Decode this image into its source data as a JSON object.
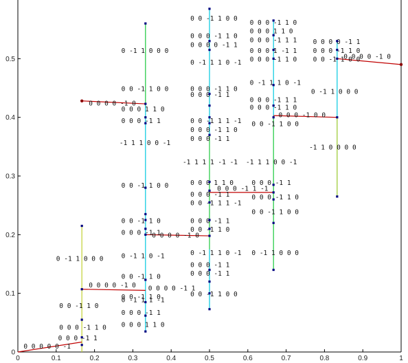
{
  "chart_data": {
    "type": "scatter",
    "title": "",
    "xlabel": "",
    "ylabel": "",
    "xlim": [
      0,
      1
    ],
    "ylim": [
      0,
      0.6
    ],
    "grid": false,
    "x_ticks": [
      "0",
      "0.1",
      "0.2",
      "0.3",
      "0.4",
      "0.5",
      "0.6",
      "0.7",
      "0.8",
      "0.9",
      "1"
    ],
    "y_ticks": [
      "0",
      "0.1",
      "0.2",
      "0.3",
      "0.4",
      "0.5"
    ],
    "colors": {
      "horizontal_segment": "#c00000",
      "vertical_cyan": "#00c8e0",
      "vertical_green": "#40d040",
      "vertical_yellowgreen": "#c0d030",
      "marker": "#000080",
      "end_marker": "#8b0000"
    },
    "horizontal_segments": [
      {
        "x": [
          0.0,
          0.167
        ],
        "y": [
          0.0,
          0.017
        ]
      },
      {
        "x": [
          0.167,
          0.333
        ],
        "y": [
          0.107,
          0.105
        ]
      },
      {
        "x": [
          0.167,
          0.333
        ],
        "y": [
          0.428,
          0.423
        ]
      },
      {
        "x": [
          0.333,
          0.5
        ],
        "y": [
          0.2,
          0.198
        ]
      },
      {
        "x": [
          0.5,
          0.667
        ],
        "y": [
          0.272,
          0.272
        ]
      },
      {
        "x": [
          0.667,
          0.833
        ],
        "y": [
          0.403,
          0.4
        ]
      },
      {
        "x": [
          0.833,
          1.0
        ],
        "y": [
          0.5,
          0.49
        ]
      }
    ],
    "vertical_segments": [
      {
        "x": 0.167,
        "y": [
          0.0,
          0.215
        ],
        "color": "#c0d030"
      },
      {
        "x": 0.333,
        "y": [
          0.035,
          0.56
        ],
        "color": "#00c8e0"
      },
      {
        "x": 0.333,
        "y": [
          0.42,
          0.56
        ],
        "color": "#40d040"
      },
      {
        "x": 0.5,
        "y": [
          0.073,
          0.585
        ],
        "color": "#00c8e0"
      },
      {
        "x": 0.5,
        "y": [
          0.175,
          0.37
        ],
        "color": "#40d040"
      },
      {
        "x": 0.667,
        "y": [
          0.14,
          0.565
        ],
        "color": "#00c8e0"
      },
      {
        "x": 0.667,
        "y": [
          0.14,
          0.4
        ],
        "color": "#40d040"
      },
      {
        "x": 0.833,
        "y": [
          0.265,
          0.53
        ],
        "color": "#00c8e0"
      },
      {
        "x": 0.833,
        "y": [
          0.265,
          0.4
        ],
        "color": "#c0d030"
      }
    ],
    "marker_points": [
      {
        "x": 0.167,
        "y": 0.012
      },
      {
        "x": 0.167,
        "y": 0.025
      },
      {
        "x": 0.167,
        "y": 0.055
      },
      {
        "x": 0.167,
        "y": 0.107
      },
      {
        "x": 0.167,
        "y": 0.215
      },
      {
        "x": 0.333,
        "y": 0.035
      },
      {
        "x": 0.333,
        "y": 0.062
      },
      {
        "x": 0.333,
        "y": 0.085
      },
      {
        "x": 0.333,
        "y": 0.123
      },
      {
        "x": 0.333,
        "y": 0.2
      },
      {
        "x": 0.333,
        "y": 0.21
      },
      {
        "x": 0.333,
        "y": 0.225
      },
      {
        "x": 0.333,
        "y": 0.235
      },
      {
        "x": 0.333,
        "y": 0.28
      },
      {
        "x": 0.333,
        "y": 0.39
      },
      {
        "x": 0.333,
        "y": 0.4
      },
      {
        "x": 0.333,
        "y": 0.423
      },
      {
        "x": 0.333,
        "y": 0.56
      },
      {
        "x": 0.5,
        "y": 0.073
      },
      {
        "x": 0.5,
        "y": 0.1
      },
      {
        "x": 0.5,
        "y": 0.12
      },
      {
        "x": 0.5,
        "y": 0.14
      },
      {
        "x": 0.5,
        "y": 0.198
      },
      {
        "x": 0.5,
        "y": 0.21
      },
      {
        "x": 0.5,
        "y": 0.225
      },
      {
        "x": 0.5,
        "y": 0.255
      },
      {
        "x": 0.5,
        "y": 0.275
      },
      {
        "x": 0.5,
        "y": 0.29
      },
      {
        "x": 0.5,
        "y": 0.37
      },
      {
        "x": 0.5,
        "y": 0.39
      },
      {
        "x": 0.5,
        "y": 0.4
      },
      {
        "x": 0.5,
        "y": 0.42
      },
      {
        "x": 0.5,
        "y": 0.44
      },
      {
        "x": 0.5,
        "y": 0.515
      },
      {
        "x": 0.5,
        "y": 0.53
      },
      {
        "x": 0.5,
        "y": 0.585
      },
      {
        "x": 0.667,
        "y": 0.14
      },
      {
        "x": 0.667,
        "y": 0.22
      },
      {
        "x": 0.667,
        "y": 0.26
      },
      {
        "x": 0.667,
        "y": 0.272
      },
      {
        "x": 0.667,
        "y": 0.285
      },
      {
        "x": 0.667,
        "y": 0.4
      },
      {
        "x": 0.667,
        "y": 0.42
      },
      {
        "x": 0.667,
        "y": 0.455
      },
      {
        "x": 0.667,
        "y": 0.5
      },
      {
        "x": 0.667,
        "y": 0.515
      },
      {
        "x": 0.667,
        "y": 0.54
      },
      {
        "x": 0.667,
        "y": 0.565
      },
      {
        "x": 0.833,
        "y": 0.265
      },
      {
        "x": 0.833,
        "y": 0.4
      },
      {
        "x": 0.833,
        "y": 0.5
      },
      {
        "x": 0.833,
        "y": 0.515
      },
      {
        "x": 0.833,
        "y": 0.53
      }
    ],
    "end_points": [
      {
        "x": 0.167,
        "y": 0.428
      },
      {
        "x": 1.0,
        "y": 0.49
      }
    ],
    "annotations": [
      {
        "text": "0 0 0 0 0 -1",
        "x": 0.015,
        "y": 0.006
      },
      {
        "text": "0 0 0 -1 1",
        "x": 0.105,
        "y": 0.02
      },
      {
        "text": "0 0 0 -1 1 0",
        "x": 0.108,
        "y": 0.038
      },
      {
        "text": "0 0 -1 1 0",
        "x": 0.108,
        "y": 0.075
      },
      {
        "text": "0 -1 1 0 0 0",
        "x": 0.1,
        "y": 0.155
      },
      {
        "text": "0 0 0 0 -1 0",
        "x": 0.185,
        "y": 0.11
      },
      {
        "text": "0 0 0 0 -1 1",
        "x": 0.34,
        "y": 0.105
      },
      {
        "text": "0 0 -1 1 0",
        "x": 0.27,
        "y": 0.125
      },
      {
        "text": "0 0 -1 1 0",
        "x": 0.27,
        "y": 0.09
      },
      {
        "text": "0 -1 1 1 -1",
        "x": 0.27,
        "y": 0.085
      },
      {
        "text": "0 0 0 -1 1",
        "x": 0.27,
        "y": 0.063
      },
      {
        "text": "0 0 0 1 1 0",
        "x": 0.27,
        "y": 0.043
      },
      {
        "text": "0 -1 1 0 -1",
        "x": 0.27,
        "y": 0.16
      },
      {
        "text": "0 0 0 -1 1",
        "x": 0.27,
        "y": 0.2
      },
      {
        "text": "0 0 -1 1 0",
        "x": 0.27,
        "y": 0.22
      },
      {
        "text": "0 0 0 0 -1 0",
        "x": 0.35,
        "y": 0.195
      },
      {
        "text": "0 0 -1 1 0 0",
        "x": 0.27,
        "y": 0.28
      },
      {
        "text": "-1 1 1 0 0 -1",
        "x": 0.265,
        "y": 0.353
      },
      {
        "text": "0 0 0 -1 1",
        "x": 0.27,
        "y": 0.39
      },
      {
        "text": "0 0 0 1 1 0",
        "x": 0.27,
        "y": 0.41
      },
      {
        "text": "0 0 -1 1 0 0",
        "x": 0.27,
        "y": 0.445
      },
      {
        "text": "0 0 0 0 -1 0",
        "x": 0.185,
        "y": 0.42
      },
      {
        "text": "0 -1 1 0 0 0",
        "x": 0.27,
        "y": 0.51
      },
      {
        "text": "0 0 -1 1 0 0",
        "x": 0.45,
        "y": 0.095
      },
      {
        "text": "0 0 0 -1 1",
        "x": 0.45,
        "y": 0.13
      },
      {
        "text": "0 0 0 -1 1",
        "x": 0.45,
        "y": 0.145
      },
      {
        "text": "0 -1 1 1 0 -1",
        "x": 0.45,
        "y": 0.165
      },
      {
        "text": "0 0 -1 1 0",
        "x": 0.45,
        "y": 0.205
      },
      {
        "text": "0 0 0 -1 1",
        "x": 0.45,
        "y": 0.22
      },
      {
        "text": "0 0 -1 1 1 -1",
        "x": 0.45,
        "y": 0.25
      },
      {
        "text": "0 0 0 -1 1",
        "x": 0.45,
        "y": 0.265
      },
      {
        "text": "0 0 0 1 1 0",
        "x": 0.45,
        "y": 0.285
      },
      {
        "text": "0 0 0 -1 1 -1",
        "x": 0.52,
        "y": 0.275
      },
      {
        "text": "-1 1 1 1 -1 -1",
        "x": 0.43,
        "y": 0.32
      },
      {
        "text": "0 0 0 -1 1 0",
        "x": 0.45,
        "y": 0.375
      },
      {
        "text": "0 0 -1 1 1 -1",
        "x": 0.45,
        "y": 0.39
      },
      {
        "text": "0 0 0 -1 1",
        "x": 0.45,
        "y": 0.36
      },
      {
        "text": "0 0 0 -1 1",
        "x": 0.45,
        "y": 0.435
      },
      {
        "text": "0 0 0 -1 1 0",
        "x": 0.45,
        "y": 0.445
      },
      {
        "text": "0 -1 1 1 0 -1",
        "x": 0.45,
        "y": 0.49
      },
      {
        "text": "0 0 0 0 -1 1",
        "x": 0.45,
        "y": 0.52
      },
      {
        "text": "0 0 0 -1 1 0",
        "x": 0.45,
        "y": 0.535
      },
      {
        "text": "0 0 -1 1 0 0",
        "x": 0.45,
        "y": 0.565
      },
      {
        "text": "0 -1 1 0 0 0",
        "x": 0.61,
        "y": 0.165
      },
      {
        "text": "0 0 -1 1 0 0",
        "x": 0.61,
        "y": 0.235
      },
      {
        "text": "0 0 0 -1 1 0",
        "x": 0.61,
        "y": 0.26
      },
      {
        "text": "0 0 0 -1 1",
        "x": 0.61,
        "y": 0.285
      },
      {
        "text": "-1 1 1 0 0 -1",
        "x": 0.595,
        "y": 0.32
      },
      {
        "text": "0 0 -1 1 0 0",
        "x": 0.61,
        "y": 0.385
      },
      {
        "text": "0 0 0 -1 0 0",
        "x": 0.68,
        "y": 0.4
      },
      {
        "text": "0 0 0 -1 1 0",
        "x": 0.605,
        "y": 0.413
      },
      {
        "text": "0 0 0 -1 1 1",
        "x": 0.605,
        "y": 0.426
      },
      {
        "text": "0 -1 1 1 0 -1",
        "x": 0.605,
        "y": 0.455
      },
      {
        "text": "0 0 0 -1 1 0",
        "x": 0.605,
        "y": 0.495
      },
      {
        "text": "0 0 0 1 -1 1",
        "x": 0.605,
        "y": 0.51
      },
      {
        "text": "0 0 0 -1 1 1",
        "x": 0.605,
        "y": 0.528
      },
      {
        "text": "0 0 0 1 1 0",
        "x": 0.605,
        "y": 0.543
      },
      {
        "text": "0 0 0 -1 1 0",
        "x": 0.605,
        "y": 0.558
      },
      {
        "text": "-1 1 0 0 0 0",
        "x": 0.76,
        "y": 0.345
      },
      {
        "text": "0 -1 1 0 0 0",
        "x": 0.765,
        "y": 0.44
      },
      {
        "text": "0 0 -1 1 0 0",
        "x": 0.77,
        "y": 0.495
      },
      {
        "text": "0 0 0 0 -1 0",
        "x": 0.85,
        "y": 0.5
      },
      {
        "text": "0 0 0 -1 1 0",
        "x": 0.77,
        "y": 0.51
      },
      {
        "text": "0 0 0 0 -1 1",
        "x": 0.77,
        "y": 0.525
      }
    ]
  }
}
